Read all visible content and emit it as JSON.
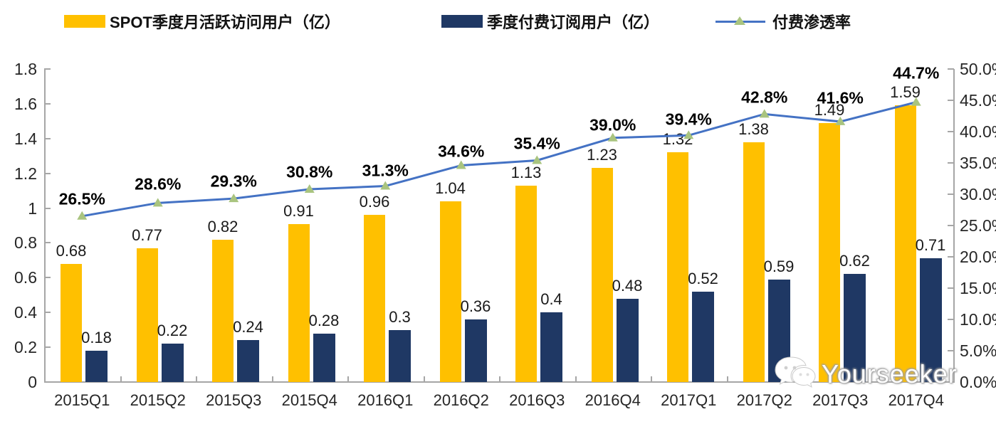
{
  "legend": {
    "mau_label": "SPOT季度月活跃访问用户（亿）",
    "subs_label": "季度付费订阅用户（亿）",
    "penetration_label": "付费渗透率"
  },
  "colors": {
    "mau_bar": "#FFC000",
    "subs_bar": "#1F3864",
    "line": "#4472C4",
    "marker": "#A9C47F",
    "axis": "#A6A6A6",
    "label_text": "#1a1a1a"
  },
  "chart_data": {
    "type": "bar",
    "subtype": "combo-bar-line-dual-axis",
    "categories": [
      "2015Q1",
      "2015Q2",
      "2015Q3",
      "2015Q4",
      "2016Q1",
      "2016Q2",
      "2016Q3",
      "2016Q4",
      "2017Q1",
      "2017Q2",
      "2017Q3",
      "2017Q4"
    ],
    "series": [
      {
        "name": "SPOT季度月活跃访问用户（亿）",
        "chart": "bar",
        "axis": "left",
        "color": "#FFC000",
        "values": [
          0.68,
          0.77,
          0.82,
          0.91,
          0.96,
          1.04,
          1.13,
          1.23,
          1.32,
          1.38,
          1.49,
          1.59
        ],
        "labels": [
          "0.68",
          "0.77",
          "0.82",
          "0.91",
          "0.96",
          "1.04",
          "1.13",
          "1.23",
          "1.32",
          "1.38",
          "1.49",
          "1.59"
        ]
      },
      {
        "name": "季度付费订阅用户（亿）",
        "chart": "bar",
        "axis": "left",
        "color": "#1F3864",
        "values": [
          0.18,
          0.22,
          0.24,
          0.28,
          0.3,
          0.36,
          0.4,
          0.48,
          0.52,
          0.59,
          0.62,
          0.71
        ],
        "labels": [
          "0.18",
          "0.22",
          "0.24",
          "0.28",
          "0.3",
          "0.36",
          "0.4",
          "0.48",
          "0.52",
          "0.59",
          "0.62",
          "0.71"
        ]
      },
      {
        "name": "付费渗透率",
        "chart": "line",
        "axis": "right",
        "color": "#4472C4",
        "marker_color": "#A9C47F",
        "values": [
          26.5,
          28.6,
          29.3,
          30.8,
          31.3,
          34.6,
          35.4,
          39.0,
          39.4,
          42.8,
          41.6,
          44.7
        ],
        "labels": [
          "26.5%",
          "28.6%",
          "29.3%",
          "30.8%",
          "31.3%",
          "34.6%",
          "35.4%",
          "39.0%",
          "39.4%",
          "42.8%",
          "41.6%",
          "44.7%"
        ]
      }
    ],
    "left_axis": {
      "ticks": [
        "1.8",
        "1.6",
        "1.4",
        "1.2",
        "1",
        "0.8",
        "0.6",
        "0.4",
        "0.2",
        "0"
      ],
      "min": 0,
      "max": 1.8
    },
    "right_axis": {
      "ticks": [
        "50.0%",
        "45.0%",
        "40.0%",
        "35.0%",
        "30.0%",
        "25.0%",
        "20.0%",
        "15.0%",
        "10.0%",
        "5.0%",
        "0.0%"
      ],
      "min": 0,
      "max": 50
    },
    "grid": false,
    "legend_position": "top",
    "layout_hints": {
      "pct_label_dy": [
        24,
        26,
        24,
        24,
        22,
        20,
        23,
        18,
        22,
        23,
        33,
        41
      ]
    }
  },
  "watermark": {
    "text": "Yourseeker",
    "icon": "wechat-icon"
  }
}
